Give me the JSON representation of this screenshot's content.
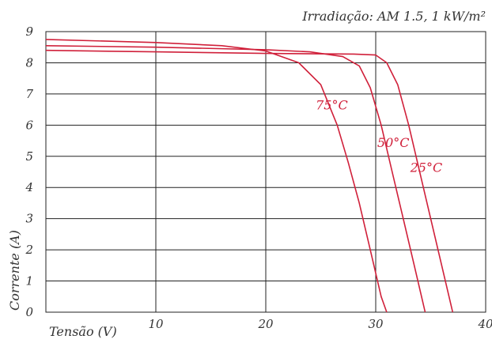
{
  "chart_data": {
    "type": "line",
    "title": "",
    "subtitle": "Irradiação: AM 1.5, 1 kW/m²",
    "xlabel": "Tensão (V)",
    "ylabel": "Corrente (A)",
    "xlim": [
      0,
      40
    ],
    "ylim": [
      0,
      9
    ],
    "x_tick_labels": [
      "10",
      "20",
      "30",
      "40"
    ],
    "y_tick_labels": [
      "0",
      "1",
      "2",
      "3",
      "4",
      "5",
      "6",
      "7",
      "8",
      "9"
    ],
    "grid": true,
    "line_color": "#d0203a",
    "grid_color": "#222222",
    "series": [
      {
        "name": "25°C",
        "points": [
          [
            0,
            8.4
          ],
          [
            10,
            8.35
          ],
          [
            20,
            8.3
          ],
          [
            28,
            8.28
          ],
          [
            30,
            8.25
          ],
          [
            31,
            8.0
          ],
          [
            32,
            7.3
          ],
          [
            33,
            6.0
          ],
          [
            34,
            4.5
          ],
          [
            35,
            3.0
          ],
          [
            36,
            1.5
          ],
          [
            37,
            0
          ]
        ]
      },
      {
        "name": "50°C",
        "points": [
          [
            0,
            8.55
          ],
          [
            10,
            8.5
          ],
          [
            20,
            8.42
          ],
          [
            24,
            8.35
          ],
          [
            27,
            8.2
          ],
          [
            28.5,
            7.9
          ],
          [
            29.5,
            7.2
          ],
          [
            30.5,
            6.0
          ],
          [
            31.5,
            4.5
          ],
          [
            32.5,
            3.0
          ],
          [
            33.5,
            1.5
          ],
          [
            34.5,
            0
          ]
        ]
      },
      {
        "name": "75°C",
        "points": [
          [
            0,
            8.75
          ],
          [
            10,
            8.65
          ],
          [
            16,
            8.55
          ],
          [
            20,
            8.38
          ],
          [
            23,
            8.0
          ],
          [
            25,
            7.3
          ],
          [
            26.5,
            6.0
          ],
          [
            27.5,
            4.8
          ],
          [
            28.5,
            3.5
          ],
          [
            29.5,
            2.0
          ],
          [
            30.5,
            0.5
          ],
          [
            31,
            0
          ]
        ]
      }
    ]
  }
}
